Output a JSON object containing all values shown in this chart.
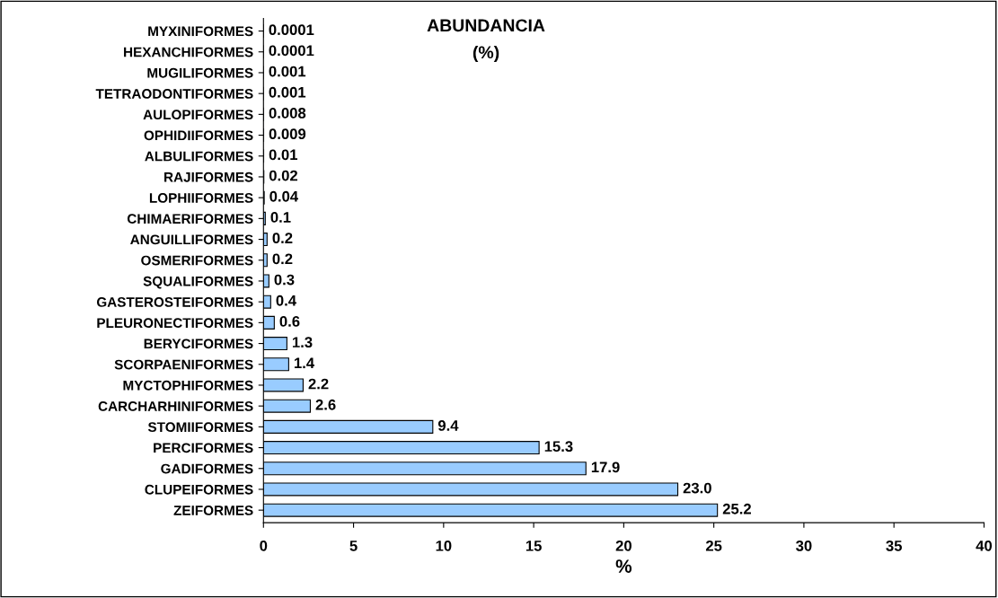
{
  "chart_data": {
    "type": "bar",
    "orientation": "horizontal",
    "title": "ABUNDANCIA",
    "subtitle": "(%)",
    "xlabel": "%",
    "categories": [
      "MYXINIFORMES",
      "HEXANCHIFORMES",
      "MUGILIFORMES",
      "TETRAODONTIFORMES",
      "AULOPIFORMES",
      "OPHIDIIFORMES",
      "ALBULIFORMES",
      "RAJIFORMES",
      "LOPHIIFORMES",
      "CHIMAERIFORMES",
      "ANGUILLIFORMES",
      "OSMERIFORMES",
      "SQUALIFORMES",
      "GASTEROSTEIFORMES",
      "PLEURONECTIFORMES",
      "BERYCIFORMES",
      "SCORPAENIFORMES",
      "MYCTOPHIFORMES",
      "CARCHARHINIFORMES",
      "STOMIIFORMES",
      "PERCIFORMES",
      "GADIFORMES",
      "CLUPEIFORMES",
      "ZEIFORMES"
    ],
    "values": [
      0.0001,
      0.0001,
      0.001,
      0.001,
      0.008,
      0.009,
      0.01,
      0.02,
      0.04,
      0.1,
      0.2,
      0.2,
      0.3,
      0.4,
      0.6,
      1.3,
      1.4,
      2.2,
      2.6,
      9.4,
      15.3,
      17.9,
      23.0,
      25.2
    ],
    "value_labels": [
      "0.0001",
      "0.0001",
      "0.001",
      "0.001",
      "0.008",
      "0.009",
      "0.01",
      "0.02",
      "0.04",
      "0.1",
      "0.2",
      "0.2",
      "0.3",
      "0.4",
      "0.6",
      "1.3",
      "1.4",
      "2.2",
      "2.6",
      "9.4",
      "15.3",
      "17.9",
      "23.0",
      "25.2"
    ],
    "color": "#99ccff",
    "xlim": [
      0,
      40
    ],
    "xticks": [
      0,
      5,
      10,
      15,
      20,
      25,
      30,
      35,
      40
    ],
    "grid": false,
    "legend": false
  }
}
